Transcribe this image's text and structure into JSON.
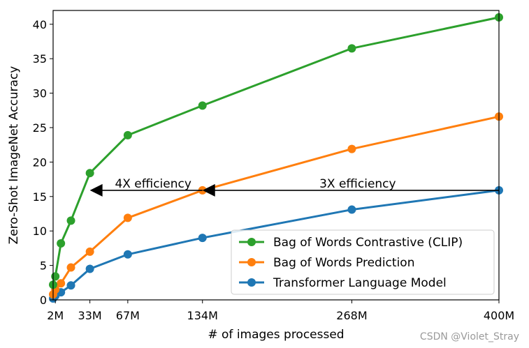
{
  "chart_data": {
    "type": "line",
    "xlabel": "# of images processed",
    "ylabel": "Zero-Shot ImageNet Accuracy",
    "xlim": [
      0,
      400
    ],
    "ylim": [
      0,
      42
    ],
    "x_ticks": [
      {
        "value": 2,
        "label": "2M"
      },
      {
        "value": 33,
        "label": "33M"
      },
      {
        "value": 67,
        "label": "67M"
      },
      {
        "value": 134,
        "label": "134M"
      },
      {
        "value": 268,
        "label": "268M"
      },
      {
        "value": 400,
        "label": "400M"
      }
    ],
    "y_ticks": [
      0,
      5,
      10,
      15,
      20,
      25,
      30,
      35,
      40
    ],
    "grid": false,
    "legend_position": "lower-right",
    "series": [
      {
        "name": "Bag of Words Contrastive (CLIP)",
        "color": "#2ca02c",
        "x": [
          0,
          2,
          7,
          16,
          33,
          67,
          134,
          268,
          400
        ],
        "y": [
          2.2,
          3.4,
          8.2,
          11.5,
          18.4,
          23.9,
          28.2,
          36.5,
          41.0
        ]
      },
      {
        "name": "Bag of Words Prediction",
        "color": "#ff7f0e",
        "x": [
          0,
          2,
          7,
          16,
          33,
          67,
          134,
          268,
          400
        ],
        "y": [
          0.8,
          1.5,
          2.4,
          4.7,
          7.0,
          11.9,
          15.9,
          21.9,
          26.6
        ]
      },
      {
        "name": "Transformer Language Model",
        "color": "#1f77b4",
        "x": [
          0,
          2,
          7,
          16,
          33,
          67,
          134,
          268,
          400
        ],
        "y": [
          0.2,
          0.6,
          1.1,
          2.1,
          4.5,
          6.6,
          9.0,
          13.1,
          15.9
        ]
      }
    ],
    "annotations": [
      {
        "text": "4X efficiency",
        "from_x": 134,
        "to_x": 33,
        "y": 15.9
      },
      {
        "text": "3X efficiency",
        "from_x": 400,
        "to_x": 134,
        "y": 15.9
      }
    ]
  },
  "watermark": "CSDN @Violet_Stray"
}
